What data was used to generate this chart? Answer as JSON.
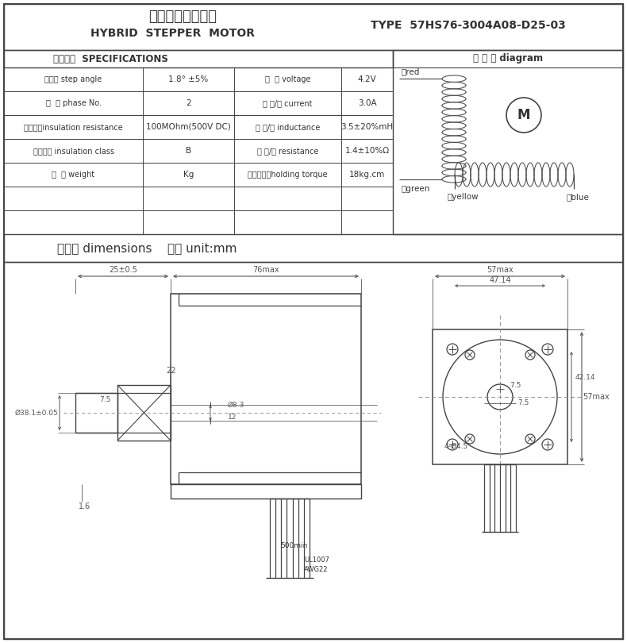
{
  "title_cn": "混合式步进电动机",
  "title_en": "HYBRID  STEPPER  MOTOR",
  "type_label": "TYPE  57HS76-3004A08-D25-03",
  "spec_header": "技术参数  SPECIFICATIONS",
  "wiring_header": "接 线 图 diagram",
  "dimensions_label": "外形图 dimensions    单位 unit:mm",
  "specs": [
    [
      "步距角 step angle",
      "1.8° ±5%",
      "电  压 voltage",
      "4.2V"
    ],
    [
      "相  数 phase No.",
      "2",
      "电 流/相 current",
      "3.0A"
    ],
    [
      "绝缘电阻insulation resistance",
      "100MOhm(500V DC)",
      "电 感/相 inductance",
      "3.5±20%mH"
    ],
    [
      "绝缘等级 insulation class",
      "B",
      "电 阻/相 resistance",
      "1.4±10%Ω"
    ],
    [
      "重  量 weight",
      "Kg",
      "最大静转矩holding torque",
      "18kg.cm"
    ]
  ],
  "line_color": "#444444",
  "text_color": "#333333",
  "dim_color": "#555555"
}
